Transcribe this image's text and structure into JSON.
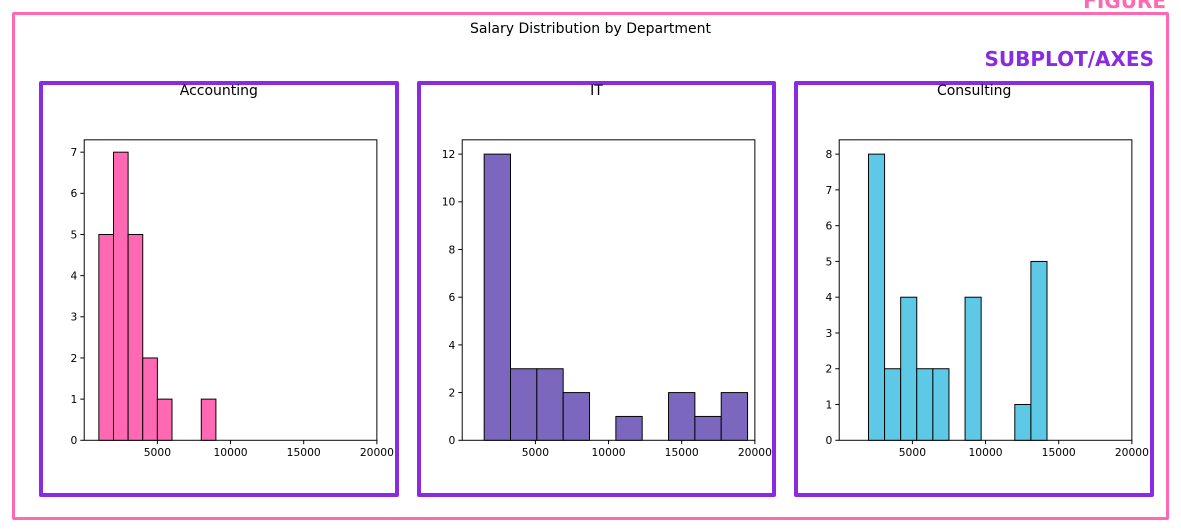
{
  "labels": {
    "figure_label": "FIGURE",
    "axes_label": "SUBPLOT/AXES",
    "suptitle": "Salary Distribution by Department"
  },
  "colors": {
    "figure_border": "#ff69b4",
    "figure_label": "#ff69b4",
    "axes_border": "#8a2be2",
    "axes_label": "#8a2be2",
    "background": "#ffffff",
    "axis_line": "#000000",
    "tick_text": "#000000"
  },
  "typography": {
    "label_fontsize": 20,
    "suptitle_fontsize": 14,
    "subplot_title_fontsize": 14,
    "tick_fontsize": 11
  },
  "layout": {
    "figure_width": 1157,
    "figure_height": 508,
    "num_panels": 3
  },
  "subplots": [
    {
      "title": "Accounting",
      "bar_color": "#ff69b4",
      "bar_edge": "#000000",
      "xlim": [
        0,
        20000
      ],
      "ylim": [
        0,
        7.3
      ],
      "xticks": [
        5000,
        10000,
        15000,
        20000
      ],
      "yticks": [
        0,
        1,
        2,
        3,
        4,
        5,
        6,
        7
      ],
      "bin_width": 1000,
      "bars": [
        {
          "x": 1000,
          "h": 5
        },
        {
          "x": 2000,
          "h": 7
        },
        {
          "x": 3000,
          "h": 5
        },
        {
          "x": 4000,
          "h": 2
        },
        {
          "x": 5000,
          "h": 1
        },
        {
          "x": 8000,
          "h": 1
        }
      ]
    },
    {
      "title": "IT",
      "bar_color": "#7b68be",
      "bar_edge": "#000000",
      "xlim": [
        0,
        20000
      ],
      "ylim": [
        0,
        12.6
      ],
      "xticks": [
        5000,
        10000,
        15000,
        20000
      ],
      "yticks": [
        0,
        2,
        4,
        6,
        8,
        10,
        12
      ],
      "bin_width": 1800,
      "bars": [
        {
          "x": 1500,
          "h": 12
        },
        {
          "x": 3300,
          "h": 3
        },
        {
          "x": 5100,
          "h": 3
        },
        {
          "x": 6900,
          "h": 2
        },
        {
          "x": 10500,
          "h": 1
        },
        {
          "x": 14100,
          "h": 2
        },
        {
          "x": 15900,
          "h": 1
        },
        {
          "x": 17700,
          "h": 2
        }
      ]
    },
    {
      "title": "Consulting",
      "bar_color": "#5dc9e6",
      "bar_edge": "#000000",
      "xlim": [
        0,
        20000
      ],
      "ylim": [
        0,
        8.4
      ],
      "xticks": [
        5000,
        10000,
        15000,
        20000
      ],
      "yticks": [
        0,
        1,
        2,
        3,
        4,
        5,
        6,
        7,
        8
      ],
      "bin_width": 1100,
      "bars": [
        {
          "x": 2000,
          "h": 8
        },
        {
          "x": 3100,
          "h": 2
        },
        {
          "x": 4200,
          "h": 4
        },
        {
          "x": 5300,
          "h": 2
        },
        {
          "x": 6400,
          "h": 2
        },
        {
          "x": 8600,
          "h": 4
        },
        {
          "x": 12000,
          "h": 1
        },
        {
          "x": 13100,
          "h": 5
        }
      ]
    }
  ]
}
